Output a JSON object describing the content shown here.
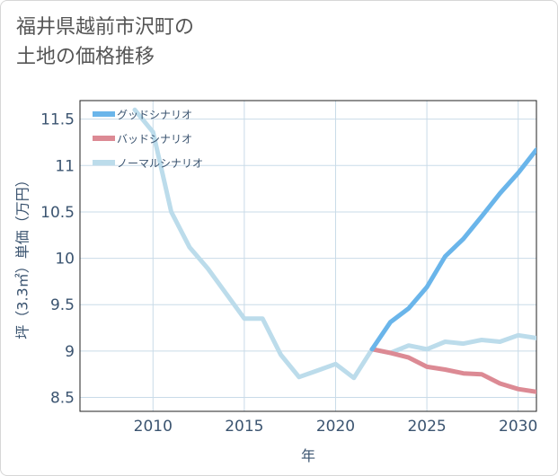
{
  "title": "福井県越前市沢町の\n土地の価格推移",
  "chart_data": {
    "type": "line",
    "xlabel": "年",
    "ylabel": "坪（3.3㎡）単価（万円）",
    "xlim": [
      2006,
      2031
    ],
    "ylim": [
      8.35,
      11.7
    ],
    "x_ticks": [
      "2010",
      "2015",
      "2020",
      "2025",
      "2030"
    ],
    "y_ticks": [
      "8.5",
      "9",
      "9.5",
      "10",
      "10.5",
      "11",
      "11.5"
    ],
    "grid": true,
    "legend_position": "top-left",
    "series": [
      {
        "name": "グッドシナリオ",
        "color": "#6ab5ea",
        "x": [
          2022,
          2023,
          2024,
          2025,
          2026,
          2027,
          2028,
          2029,
          2030,
          2031
        ],
        "y": [
          9.02,
          9.31,
          9.46,
          9.69,
          10.02,
          10.21,
          10.45,
          10.7,
          10.92,
          11.17
        ]
      },
      {
        "name": "バッドシナリオ",
        "color": "#dc8a94",
        "x": [
          2022,
          2023,
          2024,
          2025,
          2026,
          2027,
          2028,
          2029,
          2030,
          2031
        ],
        "y": [
          9.02,
          8.98,
          8.93,
          8.83,
          8.8,
          8.76,
          8.75,
          8.65,
          8.59,
          8.56
        ]
      },
      {
        "name": "ノーマルシナリオ",
        "color": "#bcdceb",
        "x": [
          2009,
          2010,
          2011,
          2012,
          2013,
          2014,
          2015,
          2016,
          2017,
          2018,
          2019,
          2020,
          2021,
          2022,
          2023,
          2024,
          2025,
          2026,
          2027,
          2028,
          2029,
          2030,
          2031
        ],
        "y": [
          11.6,
          11.36,
          10.5,
          10.12,
          9.89,
          9.62,
          9.35,
          9.35,
          8.96,
          8.72,
          8.79,
          8.86,
          8.71,
          9.02,
          8.98,
          9.06,
          9.02,
          9.1,
          9.08,
          9.12,
          9.1,
          9.17,
          9.14
        ]
      }
    ]
  }
}
